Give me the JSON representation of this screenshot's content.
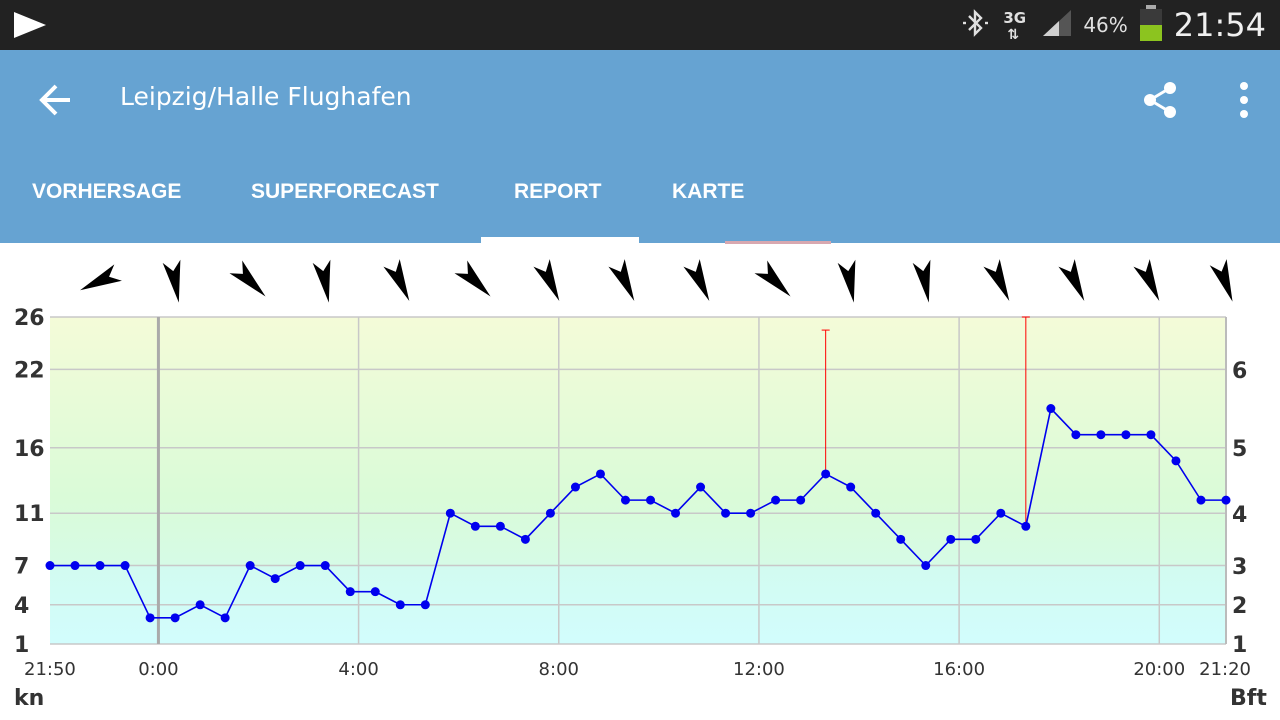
{
  "status_bar": {
    "time": "21:54",
    "battery_percent": "46%",
    "network": "3G",
    "icons": [
      "play-icon",
      "bluetooth-icon",
      "signal-icon",
      "battery-icon"
    ]
  },
  "app_bar": {
    "title": "Leipzig/Halle Flughafen",
    "back_icon": "back-arrow-icon",
    "share_icon": "share-icon",
    "more_icon": "more-vert-icon"
  },
  "tabs": [
    {
      "label": "VORHERSAGE",
      "active": false
    },
    {
      "label": "SUPERFORECAST",
      "active": false
    },
    {
      "label": "REPORT",
      "active": true
    },
    {
      "label": "KARTE",
      "active": false
    }
  ],
  "colors": {
    "app_bar": "#66a3d2",
    "status_bar": "#222222",
    "series_line": "#0000ee",
    "gust_line": "#ff0000"
  },
  "chart_data": {
    "type": "line",
    "x_labels": [
      "21:50",
      "0:00",
      "4:00",
      "8:00",
      "12:00",
      "16:00",
      "20:00",
      "21:20"
    ],
    "y_left_label": "kn",
    "y_right_label": "Bft",
    "y_left_ticks": [
      1,
      4,
      7,
      11,
      16,
      22,
      26
    ],
    "y_right_ticks": [
      1,
      2,
      3,
      4,
      5,
      6
    ],
    "ylim": [
      1,
      26
    ],
    "x_range_hours": [
      -2.1667,
      21.3333
    ],
    "grid": true,
    "series": [
      {
        "x": [
          -2.1667,
          -1.6667,
          -1.1667,
          -0.6667,
          -0.1667,
          0.3333,
          0.8333,
          1.3333,
          1.8333,
          2.3333,
          2.8333,
          3.3333,
          3.8333,
          4.3333,
          4.8333,
          5.3333,
          5.8333,
          6.3333,
          6.8333,
          7.3333,
          7.8333,
          8.3333,
          8.8333,
          9.3333,
          9.8333,
          10.3333,
          10.8333,
          11.3333,
          11.8333,
          12.3333,
          12.8333,
          13.3333,
          13.8333,
          14.3333,
          14.8333,
          15.3333,
          15.8333,
          16.3333,
          16.8333,
          17.3333,
          17.8333,
          18.3333,
          18.8333,
          19.3333,
          19.8333,
          20.3333,
          20.8333,
          21.3333
        ],
        "values": [
          7,
          7,
          7,
          7,
          3,
          3,
          4,
          3,
          7,
          6,
          7,
          7,
          5,
          5,
          4,
          4,
          11,
          10,
          10,
          9,
          11,
          13,
          14,
          12,
          12,
          11,
          13,
          11,
          11,
          12,
          12,
          14,
          13,
          11,
          9,
          7,
          9,
          9,
          11,
          10,
          19,
          17,
          17,
          17,
          17,
          15,
          12,
          12
        ]
      }
    ],
    "gusts": [
      {
        "x": 13.3333,
        "value": 25
      },
      {
        "x": 17.3333,
        "value": 26
      }
    ],
    "direction_arrows_deg": [
      245,
      170,
      135,
      170,
      155,
      135,
      155,
      155,
      155,
      135,
      170,
      170,
      155,
      155,
      155,
      160
    ]
  }
}
